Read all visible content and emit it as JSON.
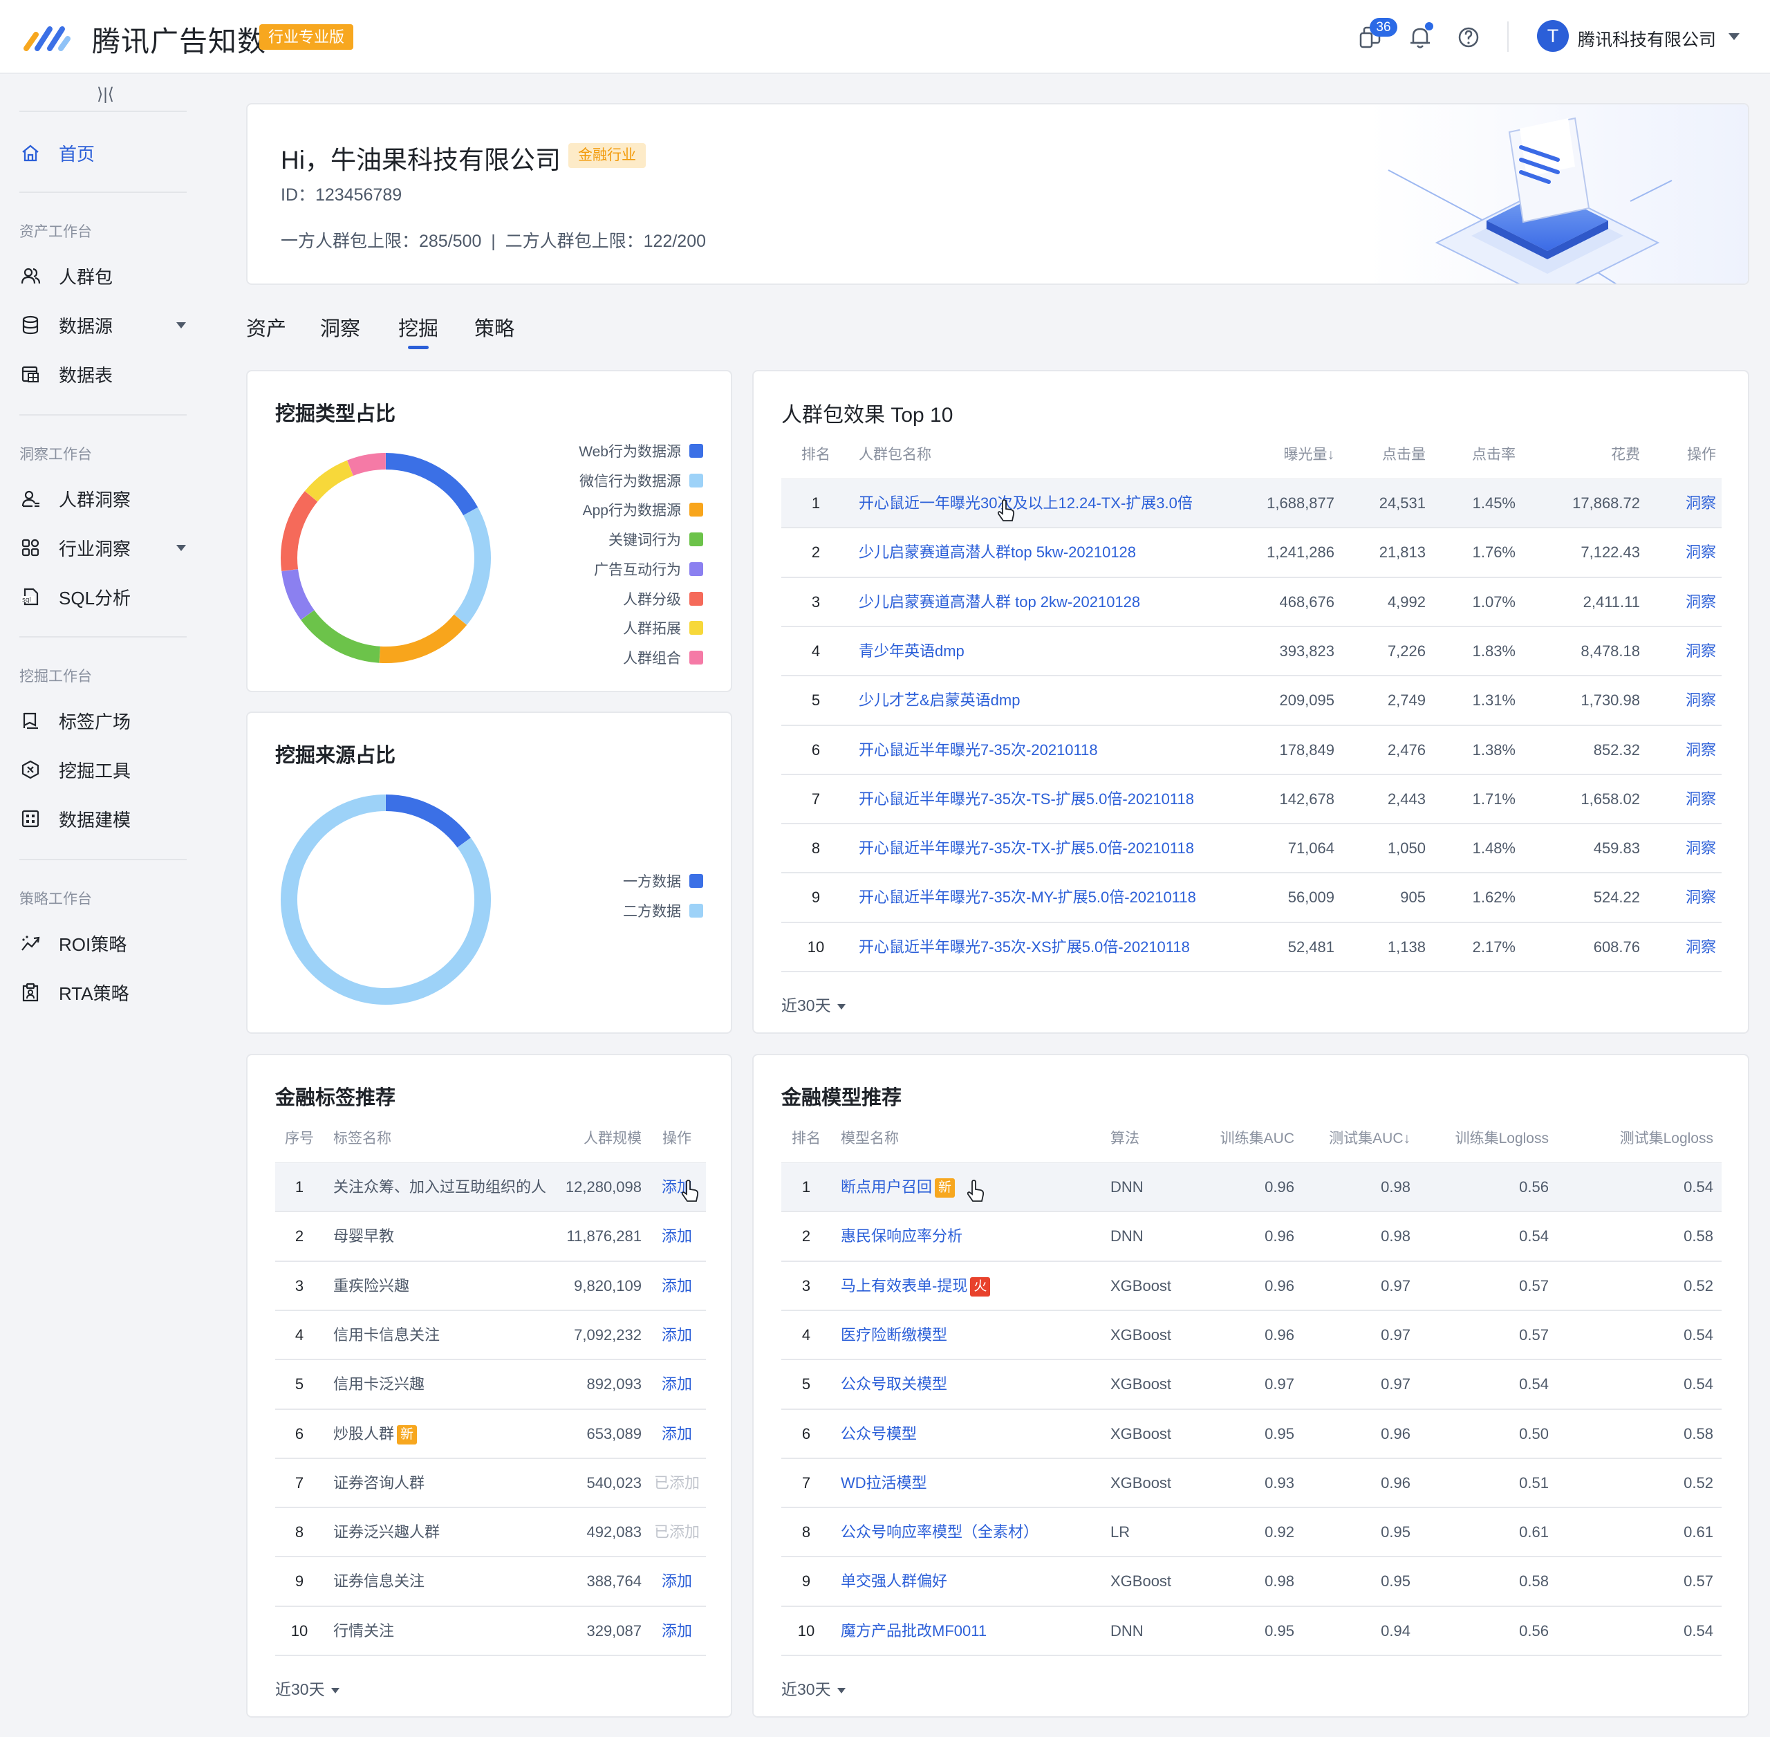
{
  "header": {
    "brand": "腾讯广告知数",
    "edition_badge": "行业专业版",
    "message_count": "36",
    "company": "腾讯科技有限公司",
    "avatar_letter": "T"
  },
  "sidebar": {
    "collapse_glyph": "⟩|⟨",
    "home": "首页",
    "groups": [
      {
        "title": "资产工作台",
        "items": [
          "人群包",
          "数据源",
          "数据表"
        ]
      },
      {
        "title": "洞察工作台",
        "items": [
          "人群洞察",
          "行业洞察",
          "SQL分析"
        ]
      },
      {
        "title": "挖掘工作台",
        "items": [
          "标签广场",
          "挖掘工具",
          "数据建模"
        ]
      },
      {
        "title": "策略工作台",
        "items": [
          "ROI策略",
          "RTA策略"
        ]
      }
    ]
  },
  "welcome": {
    "greeting": "Hi，牛油果科技有限公司",
    "industry_badge": "金融行业",
    "id_text": "ID：123456789",
    "limits": "一方人群包上限：285/500  |  二方人群包上限：122/200"
  },
  "tabs": [
    "资产",
    "洞察",
    "挖掘",
    "策略"
  ],
  "active_tab": "挖掘",
  "mining_type": {
    "title": "挖掘类型占比"
  },
  "mining_source": {
    "title": "挖掘来源占比"
  },
  "chart_data": [
    {
      "type": "pie",
      "title": "挖掘类型占比",
      "labels": [
        "Web行为数据源",
        "微信行为数据源",
        "App行为数据源",
        "关键词行为",
        "广告互动行为",
        "人群分级",
        "人群拓展",
        "人群组合"
      ],
      "values": [
        17,
        19,
        15,
        14,
        8,
        13,
        8,
        6
      ],
      "colors": [
        "#3b70e6",
        "#9dd2f8",
        "#f8a51c",
        "#6cc34a",
        "#8b80f0",
        "#f56a5a",
        "#f7d83a",
        "#f57aa6"
      ]
    },
    {
      "type": "pie",
      "title": "挖掘来源占比",
      "labels": [
        "一方数据",
        "二方数据"
      ],
      "values": [
        15,
        85
      ],
      "colors": [
        "#3b70e6",
        "#9dd2f8"
      ]
    }
  ],
  "top10": {
    "title": "人群包效果 Top 10",
    "headers": [
      "排名",
      "人群包名称",
      "曝光量↓",
      "点击量",
      "点击率",
      "花费",
      "操作"
    ],
    "rows": [
      [
        "1",
        "开心鼠近一年曝光30次及以上12.24-TX-扩展3.0倍",
        "1,688,877",
        "24,531",
        "1.45%",
        "17,868.72",
        "洞察"
      ],
      [
        "2",
        "少儿启蒙赛道高潜人群top 5kw-20210128",
        "1,241,286",
        "21,813",
        "1.76%",
        "7,122.43",
        "洞察"
      ],
      [
        "3",
        "少儿启蒙赛道高潜人群 top 2kw-20210128",
        "468,676",
        "4,992",
        "1.07%",
        "2,411.11",
        "洞察"
      ],
      [
        "4",
        "青少年英语dmp",
        "393,823",
        "7,226",
        "1.83%",
        "8,478.18",
        "洞察"
      ],
      [
        "5",
        "少儿才艺&启蒙英语dmp",
        "209,095",
        "2,749",
        "1.31%",
        "1,730.98",
        "洞察"
      ],
      [
        "6",
        "开心鼠近半年曝光7-35次-20210118",
        "178,849",
        "2,476",
        "1.38%",
        "852.32",
        "洞察"
      ],
      [
        "7",
        "开心鼠近半年曝光7-35次-TS-扩展5.0倍-20210118",
        "142,678",
        "2,443",
        "1.71%",
        "1,658.02",
        "洞察"
      ],
      [
        "8",
        "开心鼠近半年曝光7-35次-TX-扩展5.0倍-20210118",
        "71,064",
        "1,050",
        "1.48%",
        "459.83",
        "洞察"
      ],
      [
        "9",
        "开心鼠近半年曝光7-35次-MY-扩展5.0倍-20210118",
        "56,009",
        "905",
        "1.62%",
        "524.22",
        "洞察"
      ],
      [
        "10",
        "开心鼠近半年曝光7-35次-XS扩展5.0倍-20210118",
        "52,481",
        "1,138",
        "2.17%",
        "608.76",
        "洞察"
      ]
    ],
    "footer": "近30天"
  },
  "fin_tags": {
    "title": "金融标签推荐",
    "headers": [
      "序号",
      "标签名称",
      "人群规模",
      "操作"
    ],
    "rows": [
      {
        "no": "1",
        "name": "关注众筹、加入过互助组织的人",
        "size": "12,280,098",
        "action": "添加",
        "added": false
      },
      {
        "no": "2",
        "name": "母婴早教",
        "size": "11,876,281",
        "action": "添加",
        "added": false
      },
      {
        "no": "3",
        "name": "重疾险兴趣",
        "size": "9,820,109",
        "action": "添加",
        "added": false
      },
      {
        "no": "4",
        "name": "信用卡信息关注",
        "size": "7,092,232",
        "action": "添加",
        "added": false
      },
      {
        "no": "5",
        "name": "信用卡泛兴趣",
        "size": "892,093",
        "action": "添加",
        "added": false
      },
      {
        "no": "6",
        "name": "炒股人群",
        "badge": "新",
        "size": "653,089",
        "action": "添加",
        "added": false
      },
      {
        "no": "7",
        "name": "证券咨询人群",
        "size": "540,023",
        "action": "已添加",
        "added": true
      },
      {
        "no": "8",
        "name": "证券泛兴趣人群",
        "size": "492,083",
        "action": "已添加",
        "added": true
      },
      {
        "no": "9",
        "name": "证券信息关注",
        "size": "388,764",
        "action": "添加",
        "added": false
      },
      {
        "no": "10",
        "name": "行情关注",
        "size": "329,087",
        "action": "添加",
        "added": false
      }
    ],
    "footer": "近30天"
  },
  "fin_models": {
    "title": "金融模型推荐",
    "headers": [
      "排名",
      "模型名称",
      "算法",
      "训练集AUC",
      "测试集AUC↓",
      "训练集Logloss",
      "测试集Logloss"
    ],
    "rows": [
      {
        "rank": "1",
        "name": "断点用户召回",
        "badge": "新",
        "badge_color": "#f7a71f",
        "algo": "DNN",
        "tauc": "0.96",
        "eauc": "0.98",
        "tll": "0.56",
        "ell": "0.54"
      },
      {
        "rank": "2",
        "name": "惠民保响应率分析",
        "algo": "DNN",
        "tauc": "0.96",
        "eauc": "0.98",
        "tll": "0.54",
        "ell": "0.58"
      },
      {
        "rank": "3",
        "name": "马上有效表单-提现",
        "badge": "火",
        "badge_color": "#e8422c",
        "algo": "XGBoost",
        "tauc": "0.96",
        "eauc": "0.97",
        "tll": "0.57",
        "ell": "0.52"
      },
      {
        "rank": "4",
        "name": "医疗险断缴模型",
        "algo": "XGBoost",
        "tauc": "0.96",
        "eauc": "0.97",
        "tll": "0.57",
        "ell": "0.54"
      },
      {
        "rank": "5",
        "name": "公众号取关模型",
        "algo": "XGBoost",
        "tauc": "0.97",
        "eauc": "0.97",
        "tll": "0.54",
        "ell": "0.54"
      },
      {
        "rank": "6",
        "name": "公众号模型",
        "algo": "XGBoost",
        "tauc": "0.95",
        "eauc": "0.96",
        "tll": "0.50",
        "ell": "0.58"
      },
      {
        "rank": "7",
        "name": "WD拉活模型",
        "algo": "XGBoost",
        "tauc": "0.93",
        "eauc": "0.96",
        "tll": "0.51",
        "ell": "0.52"
      },
      {
        "rank": "8",
        "name": "公众号响应率模型（全素材）",
        "algo": "LR",
        "tauc": "0.92",
        "eauc": "0.95",
        "tll": "0.61",
        "ell": "0.61"
      },
      {
        "rank": "9",
        "name": "单交强人群偏好",
        "algo": "XGBoost",
        "tauc": "0.98",
        "eauc": "0.95",
        "tll": "0.58",
        "ell": "0.57"
      },
      {
        "rank": "10",
        "name": "魔方产品批改MF0011",
        "algo": "DNN",
        "tauc": "0.95",
        "eauc": "0.94",
        "tll": "0.56",
        "ell": "0.54"
      }
    ],
    "footer": "近30天"
  }
}
